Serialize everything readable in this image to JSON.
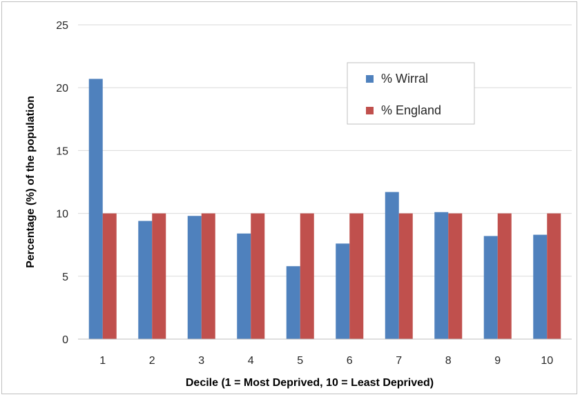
{
  "chart_data": {
    "type": "bar",
    "categories": [
      "1",
      "2",
      "3",
      "4",
      "5",
      "6",
      "7",
      "8",
      "9",
      "10"
    ],
    "series": [
      {
        "name": "% Wirral",
        "color": "#4f81bd",
        "values": [
          20.7,
          9.4,
          9.8,
          8.4,
          5.8,
          7.6,
          11.7,
          10.1,
          8.2,
          8.3
        ]
      },
      {
        "name": "% England",
        "color": "#c0504d",
        "values": [
          10,
          10,
          10,
          10,
          10,
          10,
          10,
          10,
          10,
          10
        ]
      }
    ],
    "title": "",
    "xlabel": "Decile (1 = Most Deprived, 10 = Least Deprived)",
    "ylabel": "Percentage (%) of the population",
    "ylim": [
      0,
      25
    ],
    "yticks": [
      "0",
      "5",
      "10",
      "15",
      "20",
      "25"
    ],
    "grid": true,
    "legend_position": "top-right"
  }
}
